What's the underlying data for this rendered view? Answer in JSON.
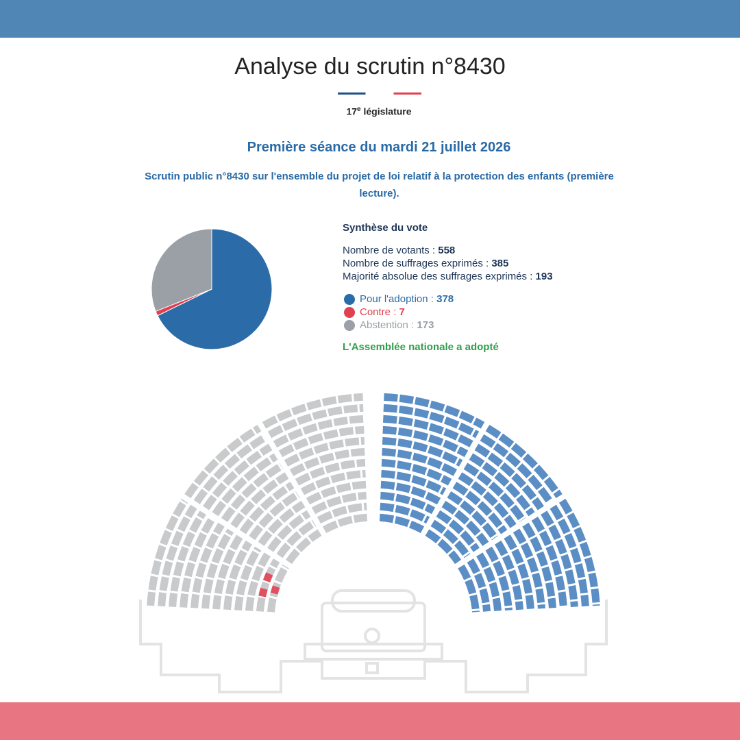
{
  "header": {
    "title": "Analyse du scrutin n°8430",
    "legislature_number": "17",
    "legislature_suffix": "e",
    "legislature_text": "législature"
  },
  "session": "Première séance du mardi 21 juillet 2026",
  "description": "Scrutin public n°8430 sur l'ensemble du projet de loi relatif à la protection des enfants (première lecture).",
  "summary": {
    "title": "Synthèse du vote",
    "stats": [
      {
        "label": "Nombre de votants :",
        "value": 558
      },
      {
        "label": "Nombre de suffrages exprimés :",
        "value": 385
      },
      {
        "label": "Majorité absolue des suffrages exprimés :",
        "value": 193
      }
    ]
  },
  "chart_data": {
    "type": "pie",
    "categories": [
      "Pour l'adoption :",
      "Contre :",
      "Abstention :"
    ],
    "values": [
      378,
      7,
      173
    ],
    "colors": [
      "#2b6ca8",
      "#e0404f",
      "#9aa0a6"
    ]
  },
  "result": "L'Assemblée nationale a adopté"
}
